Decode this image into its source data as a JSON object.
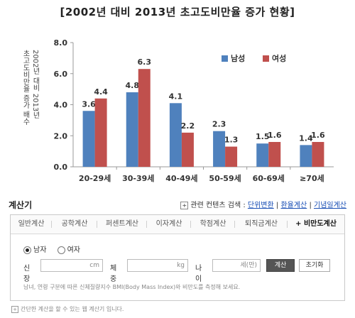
{
  "chart_data": {
    "type": "bar",
    "title": "[2002년 대비 2013년 초고도비만율 증가 현황]",
    "ylabel_line1": "2002년 대비 2013년",
    "ylabel_line2": "초고도비만율 증가 배수",
    "categories": [
      "20-29세",
      "30-39세",
      "40-49세",
      "50-59세",
      "60-69세",
      "≥70세"
    ],
    "series": [
      {
        "name": "남성",
        "color": "#4f81bd",
        "values": [
          3.6,
          4.8,
          4.1,
          2.3,
          1.5,
          1.4
        ],
        "labels": [
          "3.6",
          "4.8",
          "4.1",
          "2.3",
          "1.5",
          "1.4"
        ]
      },
      {
        "name": "여성",
        "color": "#c0504d",
        "values": [
          4.4,
          6.3,
          2.2,
          1.3,
          1.6,
          1.6
        ],
        "labels": [
          "4.4",
          "6.3",
          "2.2",
          "1.3",
          "1.6",
          "1.6"
        ]
      }
    ],
    "yticks": [
      "0.0",
      "2.0",
      "4.0",
      "6.0",
      "8.0"
    ],
    "ylim": [
      0,
      8
    ],
    "grid": false,
    "legend": "top-right"
  },
  "calculator": {
    "title": "계산기",
    "related_label": "관련 컨텐츠 검색 :",
    "related_links": [
      "단위변환",
      "환율계산",
      "기념일계산"
    ],
    "tabs": [
      "일반계산",
      "공학계산",
      "퍼센트계산",
      "이자계산",
      "학점계산",
      "퇴직금계산",
      "비만도계산"
    ],
    "active_tab_prefix": "+",
    "gender": {
      "male": "남자",
      "female": "여자",
      "selected": "male"
    },
    "height_label": "신장",
    "height_unit": "cm",
    "weight_label": "체중",
    "weight_unit": "kg",
    "age_label": "나이",
    "age_unit": "세(만)",
    "calc_button": "계산",
    "reset_button": "초기화",
    "description": "남녀, 연령 구분에 따른 신체질량지수 BMI(Body Mass Index)와 비만도를 측정해 보세요."
  },
  "footnote": "간단한 계산을 할 수 있는 웹 계산기 입니다."
}
